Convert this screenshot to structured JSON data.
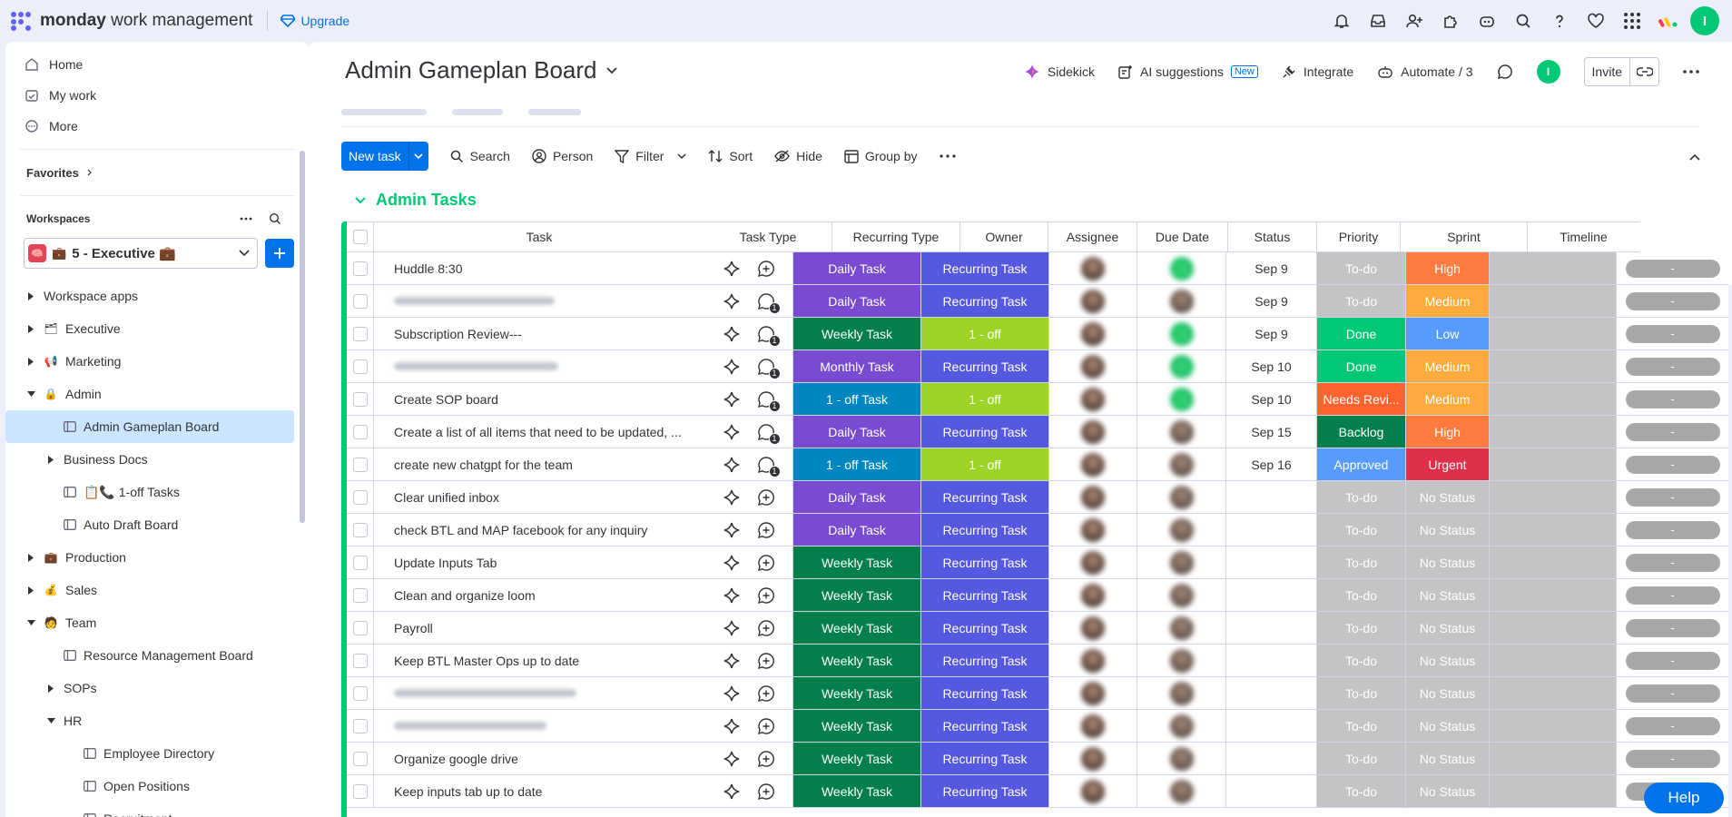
{
  "app": {
    "logo_brand": "monday",
    "logo_product": "work management",
    "upgrade": "Upgrade",
    "user_initial": "I"
  },
  "sidebar": {
    "nav": [
      {
        "label": "Home",
        "icon": "home-icon"
      },
      {
        "label": "My work",
        "icon": "calendar-check-icon"
      },
      {
        "label": "More",
        "icon": "more-circle-icon"
      }
    ],
    "favorites": "Favorites",
    "workspaces": "Workspaces",
    "workspace_selected": "5 - Executive 💼",
    "tree": [
      {
        "label": "Workspace apps",
        "indent": 0,
        "caret": "right",
        "icon": ""
      },
      {
        "label": "Executive",
        "indent": 0,
        "caret": "right",
        "icon": "🗂"
      },
      {
        "label": "Marketing",
        "indent": 0,
        "caret": "right",
        "icon": "📢"
      },
      {
        "label": "Admin",
        "indent": 0,
        "caret": "down",
        "icon": "🔒"
      },
      {
        "label": "Admin Gameplan Board",
        "indent": 1,
        "caret": "",
        "icon": "board",
        "selected": true
      },
      {
        "label": "Business Docs",
        "indent": 1,
        "caret": "right",
        "icon": ""
      },
      {
        "label": "📋📞 1-off Tasks",
        "indent": 1,
        "caret": "",
        "icon": "board"
      },
      {
        "label": "Auto Draft Board",
        "indent": 1,
        "caret": "",
        "icon": "board"
      },
      {
        "label": "Production",
        "indent": 0,
        "caret": "right",
        "icon": "💼"
      },
      {
        "label": "Sales",
        "indent": 0,
        "caret": "right",
        "icon": "💰"
      },
      {
        "label": "Team",
        "indent": 0,
        "caret": "down",
        "icon": "🧑"
      },
      {
        "label": "Resource Management Board",
        "indent": 1,
        "caret": "",
        "icon": "board"
      },
      {
        "label": "SOPs",
        "indent": 1,
        "caret": "right",
        "icon": ""
      },
      {
        "label": "HR",
        "indent": 1,
        "caret": "down",
        "icon": ""
      },
      {
        "label": "Employee Directory",
        "indent": 2,
        "caret": "",
        "icon": "board"
      },
      {
        "label": "Open Positions",
        "indent": 2,
        "caret": "",
        "icon": "board"
      },
      {
        "label": "Recruitment",
        "indent": 2,
        "caret": "",
        "icon": "board"
      }
    ]
  },
  "board": {
    "title": "Admin Gameplan Board",
    "actions": {
      "sidekick": "Sidekick",
      "ai": "AI suggestions",
      "ai_badge": "New",
      "integrate": "Integrate",
      "automate": "Automate / 3",
      "invite": "Invite"
    },
    "toolbar": {
      "new_task": "New task",
      "search": "Search",
      "person": "Person",
      "filter": "Filter",
      "sort": "Sort",
      "hide": "Hide",
      "group_by": "Group by"
    },
    "group": "Admin Tasks",
    "columns": [
      "Task",
      "Task Type",
      "Recurring Type",
      "Owner",
      "Assignee",
      "Due Date",
      "Status",
      "Priority",
      "Sprint",
      "Timeline"
    ],
    "rows": [
      {
        "name": "Huddle 8:30",
        "blurred": false,
        "updates": 0,
        "type": "Daily Task",
        "rec": "Recurring Task",
        "assignee": "green",
        "due": "Sep 9",
        "status": "To-do",
        "prio": "High"
      },
      {
        "name": "",
        "blurred": true,
        "updates": 1,
        "type": "Daily Task",
        "rec": "Recurring Task",
        "assignee": "photo",
        "due": "Sep 9",
        "status": "To-do",
        "prio": "Medium"
      },
      {
        "name": "Subscription Review---",
        "blurred": false,
        "updates": 1,
        "type": "Weekly Task",
        "rec": "1 - off",
        "assignee": "green",
        "due": "Sep 9",
        "status": "Done",
        "prio": "Low"
      },
      {
        "name": "",
        "blurred": true,
        "updates": 1,
        "type": "Monthly Task",
        "rec": "Recurring Task",
        "assignee": "green",
        "due": "Sep 10",
        "status": "Done",
        "prio": "Medium"
      },
      {
        "name": "Create SOP board",
        "blurred": false,
        "updates": 1,
        "type": "1 - off Task",
        "rec": "1 - off",
        "assignee": "green",
        "due": "Sep 10",
        "status": "Needs Revi...",
        "prio": "Medium"
      },
      {
        "name": "Create a list of all items that need to be updated, ...",
        "blurred": false,
        "updates": 1,
        "type": "Daily Task",
        "rec": "Recurring Task",
        "assignee": "photo",
        "due": "Sep 15",
        "status": "Backlog",
        "prio": "High"
      },
      {
        "name": "create new chatgpt for the team",
        "blurred": false,
        "updates": 1,
        "type": "1 - off Task",
        "rec": "1 - off",
        "assignee": "photo",
        "due": "Sep 16",
        "status": "Approved",
        "prio": "Urgent"
      },
      {
        "name": "Clear unified inbox",
        "blurred": false,
        "updates": 0,
        "type": "Daily Task",
        "rec": "Recurring Task",
        "assignee": "photo",
        "due": "",
        "status": "To-do",
        "prio": "No Status"
      },
      {
        "name": "check BTL and MAP facebook for any inquiry",
        "blurred": false,
        "updates": 0,
        "type": "Daily Task",
        "rec": "Recurring Task",
        "assignee": "photo",
        "due": "",
        "status": "To-do",
        "prio": "No Status"
      },
      {
        "name": "Update Inputs Tab",
        "blurred": false,
        "updates": 0,
        "type": "Weekly Task",
        "rec": "Recurring Task",
        "assignee": "photo",
        "due": "",
        "status": "To-do",
        "prio": "No Status"
      },
      {
        "name": "Clean and organize loom",
        "blurred": false,
        "updates": 0,
        "type": "Weekly Task",
        "rec": "Recurring Task",
        "assignee": "photo",
        "due": "",
        "status": "To-do",
        "prio": "No Status"
      },
      {
        "name": "Payroll",
        "blurred": false,
        "updates": 0,
        "type": "Weekly Task",
        "rec": "Recurring Task",
        "assignee": "photo",
        "due": "",
        "status": "To-do",
        "prio": "No Status"
      },
      {
        "name": "Keep BTL Master Ops up to date",
        "blurred": false,
        "updates": 0,
        "type": "Weekly Task",
        "rec": "Recurring Task",
        "assignee": "photo",
        "due": "",
        "status": "To-do",
        "prio": "No Status"
      },
      {
        "name": "",
        "blurred": true,
        "updates": 0,
        "type": "Weekly Task",
        "rec": "Recurring Task",
        "assignee": "photo",
        "due": "",
        "status": "To-do",
        "prio": "No Status"
      },
      {
        "name": "",
        "blurred": true,
        "updates": 0,
        "type": "Weekly Task",
        "rec": "Recurring Task",
        "assignee": "photo",
        "due": "",
        "status": "To-do",
        "prio": "No Status"
      },
      {
        "name": "Organize google drive",
        "blurred": false,
        "updates": 0,
        "type": "Weekly Task",
        "rec": "Recurring Task",
        "assignee": "photo",
        "due": "",
        "status": "To-do",
        "prio": "No Status"
      },
      {
        "name": "Keep inputs tab up to date",
        "blurred": false,
        "updates": 0,
        "type": "Weekly Task",
        "rec": "Recurring Task",
        "assignee": "photo",
        "due": "",
        "status": "To-do",
        "prio": "No Status"
      }
    ],
    "timeline_placeholder": "-",
    "help": "Help"
  },
  "colors": {
    "Daily Task": "#784bd1",
    "Weekly Task": "#037f4c",
    "Monthly Task": "#784bd1",
    "1 - off Task": "#0086c0",
    "Recurring Task": "#5559df",
    "1 - off": "#9cd326",
    "To-do": "#c4c4c4",
    "Done": "#00c875",
    "Needs Revi...": "#ff642e",
    "Backlog": "#037f4c",
    "Approved": "#579bfc",
    "High": "#ff7b3f",
    "Medium": "#fdab3d",
    "Low": "#579bfc",
    "Urgent": "#df2f4a",
    "No Status": "#c4c4c4",
    "accent": "#0073ea",
    "group": "#00c875"
  }
}
